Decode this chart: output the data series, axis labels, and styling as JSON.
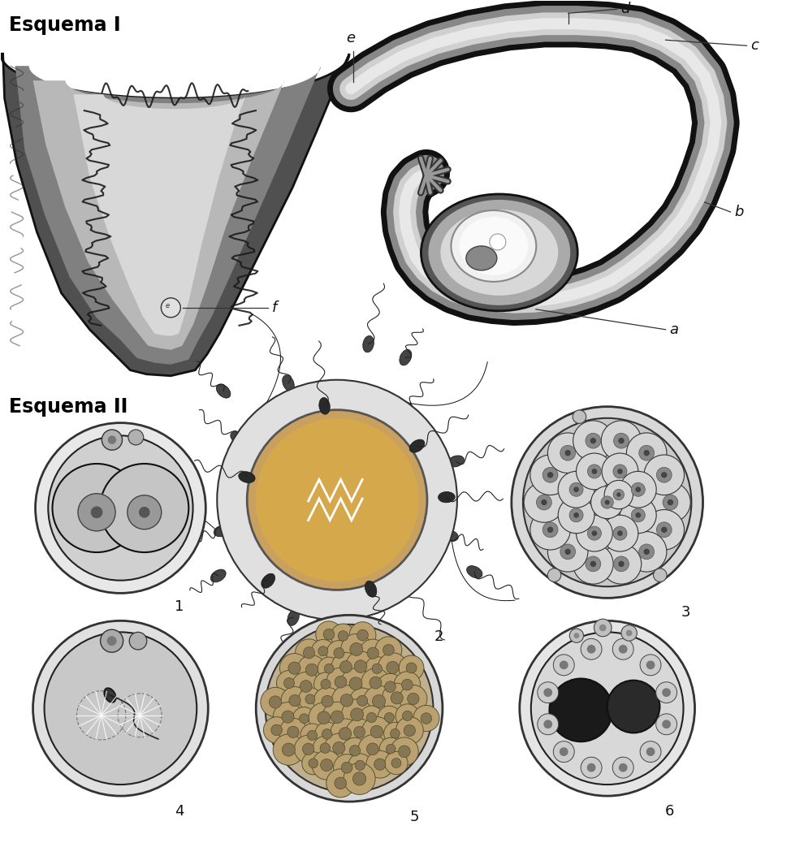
{
  "title_esquema1": "Esquema I",
  "title_esquema2": "Esquema II",
  "bg_color": "#ffffff",
  "label_a": "a",
  "label_b": "b",
  "label_c": "c",
  "label_d": "d",
  "label_e": "e",
  "label_f": "f",
  "numbers": [
    "1",
    "2",
    "3",
    "4",
    "5",
    "6"
  ],
  "dark": "#111111",
  "dark2": "#222222",
  "gray1": "#444444",
  "gray2": "#666666",
  "gray3": "#888888",
  "gray4": "#aaaaaa",
  "gray5": "#bbbbbb",
  "gray6": "#cccccc",
  "gray7": "#dddddd",
  "gray8": "#e8e8e8",
  "white": "#ffffff",
  "uterus_outer": "#4a4a4a",
  "uterus_mid": "#7a7a7a",
  "uterus_light": "#b0b0b0",
  "uterus_cavity": "#d5d5d5",
  "tube_outer": "#1a1a1a",
  "tube_mid": "#888888",
  "tube_lumen": "#d0d0d0",
  "ovary_outer": "#999999",
  "ovary_light": "#e5e5e5"
}
